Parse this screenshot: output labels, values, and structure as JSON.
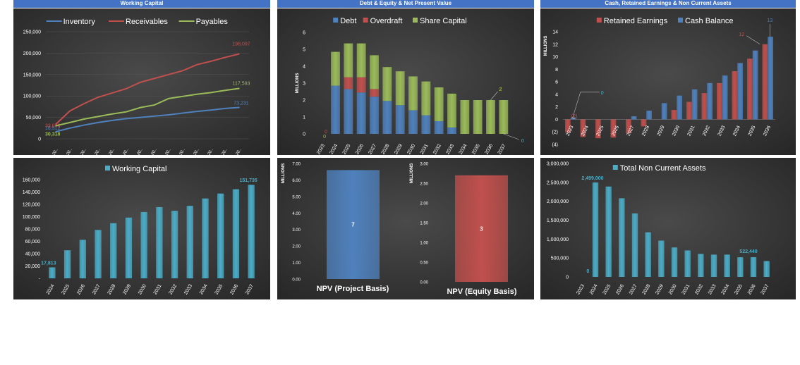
{
  "headers": [
    "Working Capital",
    "Debt & Equity & Net Present Value",
    "Cash, Retained Earnings & Non Current Assets"
  ],
  "chart_data": [
    {
      "id": "wc-lines",
      "type": "line",
      "x": [
        "20..",
        "20..",
        "20..",
        "20..",
        "20..",
        "20..",
        "20..",
        "20..",
        "20..",
        "20..",
        "20..",
        "20..",
        "20..",
        "20.."
      ],
      "ylim": [
        0,
        250000
      ],
      "yticks": [
        0,
        50000,
        100000,
        150000,
        200000,
        250000
      ],
      "ytick_labels": [
        "0",
        "50,000",
        "100,000",
        "150,000",
        "200,000",
        "250,000"
      ],
      "legend_position": "top",
      "series": [
        {
          "name": "Inventory",
          "color": "#4f81bd",
          "values": [
            16512,
            25000,
            32000,
            38000,
            43000,
            47000,
            50000,
            53000,
            56000,
            60000,
            64000,
            67000,
            71000,
            73231
          ],
          "first_label": "16,512",
          "last_label": "73,231"
        },
        {
          "name": "Receivables",
          "color": "#c0504d",
          "values": [
            33876,
            65000,
            82000,
            97000,
            107000,
            117000,
            132000,
            141000,
            150000,
            159000,
            173000,
            181000,
            190000,
            198097
          ],
          "first_label": "33,876",
          "last_label": "198,097"
        },
        {
          "name": "Payables",
          "color": "#9bbb59",
          "values": [
            30318,
            38000,
            46000,
            52000,
            58000,
            63000,
            73000,
            79000,
            94000,
            99000,
            104000,
            108000,
            113000,
            117593
          ],
          "first_label": "30,318",
          "last_label": "117,593"
        }
      ]
    },
    {
      "id": "debt-equity",
      "type": "bar",
      "stacked": true,
      "ylabel": "MILLIONS",
      "categories": [
        "2023",
        "2024",
        "2025",
        "2026",
        "2027",
        "2028",
        "2029",
        "2030",
        "2031",
        "2032",
        "2033",
        "2034",
        "2035",
        "2036",
        "2037"
      ],
      "ylim": [
        0,
        6
      ],
      "yticks": [
        0,
        1,
        2,
        3,
        4,
        5,
        6
      ],
      "ytick_labels": [
        "0",
        "1",
        "2",
        "3",
        "4",
        "5",
        "6"
      ],
      "legend_position": "top",
      "series": [
        {
          "name": "Debt",
          "color": "#4f81bd",
          "values": [
            0,
            2.85,
            2.65,
            2.45,
            2.2,
            1.95,
            1.7,
            1.4,
            1.1,
            0.75,
            0.38,
            0,
            0,
            0,
            0
          ]
        },
        {
          "name": "Overdraft",
          "color": "#c0504d",
          "values": [
            0,
            0,
            0.7,
            0.9,
            0.45,
            0,
            0,
            0,
            0,
            0,
            0,
            0,
            0,
            0,
            0
          ]
        },
        {
          "name": "Share Capital",
          "color": "#9bbb59",
          "values": [
            0,
            2,
            2,
            2,
            2,
            2,
            2,
            2,
            2,
            2,
            2,
            2,
            2,
            2,
            2
          ]
        }
      ],
      "annotations": [
        {
          "text": "0",
          "color": "#c0504d"
        },
        {
          "text": "0",
          "color": "#9bbb59"
        },
        {
          "text": "2",
          "color": "#d4e157"
        },
        {
          "text": "0",
          "color": "#4bacc6"
        }
      ]
    },
    {
      "id": "cash-retained",
      "type": "bar",
      "ylabel": "MILLIONS",
      "categories": [
        "2023",
        "2024",
        "2025",
        "2026",
        "2027",
        "2028",
        "2029",
        "2030",
        "2031",
        "2032",
        "2033",
        "2034",
        "2035",
        "2036"
      ],
      "ylim": [
        -4,
        14
      ],
      "yticks": [
        -4,
        -2,
        0,
        2,
        4,
        6,
        8,
        10,
        12,
        14
      ],
      "ytick_labels": [
        "(4)",
        "(2)",
        "0",
        "2",
        "4",
        "6",
        "8",
        "10",
        "12",
        "14"
      ],
      "legend_position": "top",
      "series": [
        {
          "name": "Retained Earnings",
          "color": "#c0504d",
          "values": [
            -2.1,
            -2.8,
            -3.0,
            -2.9,
            -2.2,
            -1.1,
            0,
            1.5,
            2.8,
            4.2,
            5.8,
            7.7,
            9.7,
            12.0
          ]
        },
        {
          "name": "Cash Balance",
          "color": "#4f81bd",
          "values": [
            0.3,
            0,
            0,
            0,
            0.5,
            1.4,
            2.6,
            3.8,
            4.8,
            5.8,
            7.0,
            9.0,
            11.0,
            13.2
          ]
        }
      ],
      "annotations": [
        {
          "text": "(2)",
          "color": "#c0504d"
        },
        {
          "text": "0",
          "color": "#4bacc6"
        },
        {
          "text": "12",
          "color": "#c0504d"
        },
        {
          "text": "13",
          "color": "#4f81bd"
        }
      ]
    },
    {
      "id": "working-capital",
      "type": "bar",
      "categories": [
        "2024",
        "2025",
        "2026",
        "2027",
        "2028",
        "2029",
        "2030",
        "2031",
        "2032",
        "2033",
        "2034",
        "2035",
        "2036",
        "2037"
      ],
      "ylim": [
        0,
        160000
      ],
      "yticks": [
        0,
        20000,
        40000,
        60000,
        80000,
        100000,
        120000,
        140000,
        160000
      ],
      "ytick_labels": [
        "-",
        "20,000",
        "40,000",
        "60,000",
        "80,000",
        "100,000",
        "120,000",
        "140,000",
        "160,000"
      ],
      "legend_position": "top",
      "series": [
        {
          "name": "Working Capital",
          "color": "#4bacc6",
          "values": [
            17813,
            45500,
            62500,
            78500,
            89500,
            98500,
            107500,
            115500,
            109500,
            117500,
            129500,
            137500,
            144500,
            151735
          ]
        }
      ],
      "annotations": [
        {
          "text": "17,813",
          "color": "#4bacc6"
        },
        {
          "text": "151,735",
          "color": "#4bacc6"
        }
      ]
    },
    {
      "id": "npv-project",
      "type": "bar",
      "ylabel": "MILLIONS",
      "categories": [
        "NPV (Project Basis)"
      ],
      "ylim": [
        0,
        7
      ],
      "yticks": [
        0,
        1,
        2,
        3,
        4,
        5,
        6,
        7
      ],
      "ytick_labels": [
        "0.00",
        "1.00",
        "2.00",
        "3.00",
        "4.00",
        "5.00",
        "6.00",
        "7.00"
      ],
      "series": [
        {
          "color": "#4f81bd",
          "values": [
            6.6
          ],
          "value_label": "7"
        }
      ]
    },
    {
      "id": "npv-equity",
      "type": "bar",
      "ylabel": "MILLIONS",
      "categories": [
        "NPV (Equity Basis)"
      ],
      "ylim": [
        0,
        3
      ],
      "yticks": [
        0,
        0.5,
        1,
        1.5,
        2,
        2.5,
        3
      ],
      "ytick_labels": [
        "0.00",
        "0.50",
        "1.00",
        "1.50",
        "2.00",
        "2.50",
        "3.00"
      ],
      "series": [
        {
          "color": "#c0504d",
          "values": [
            2.7
          ],
          "value_label": "3"
        }
      ]
    },
    {
      "id": "nca",
      "type": "bar",
      "categories": [
        "2023",
        "2024",
        "2025",
        "2026",
        "2027",
        "2028",
        "2029",
        "2030",
        "2031",
        "2032",
        "2033",
        "2034",
        "2035",
        "2036",
        "2037"
      ],
      "ylim": [
        0,
        3000000
      ],
      "yticks": [
        0,
        500000,
        1000000,
        1500000,
        2000000,
        2500000,
        3000000
      ],
      "ytick_labels": [
        "0",
        "500,000",
        "1,000,000",
        "1,500,000",
        "2,000,000",
        "2,500,000",
        "3,000,000"
      ],
      "legend_position": "top",
      "series": [
        {
          "name": "Total Non Current Assets",
          "color": "#4bacc6",
          "values": [
            0,
            2499000,
            2390000,
            2080000,
            1680000,
            1180000,
            960000,
            780000,
            700000,
            610000,
            590000,
            590000,
            520000,
            522440,
            420000
          ]
        }
      ],
      "annotations": [
        {
          "text": "0",
          "color": "#4bacc6"
        },
        {
          "text": "2,499,000",
          "color": "#4bacc6"
        },
        {
          "text": "522,440",
          "color": "#4bacc6"
        }
      ]
    }
  ]
}
